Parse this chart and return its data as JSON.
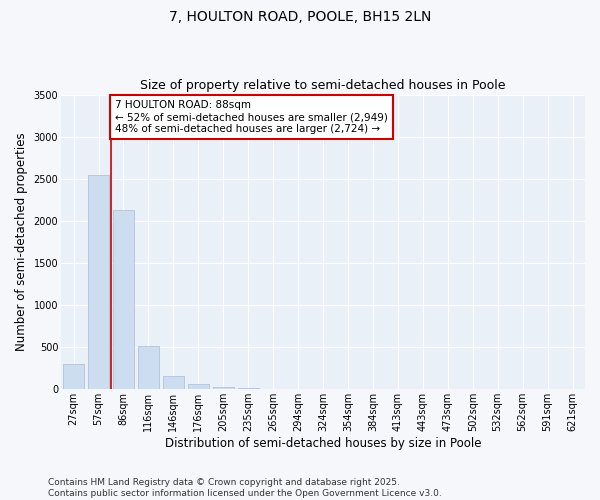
{
  "title": "7, HOULTON ROAD, POOLE, BH15 2LN",
  "subtitle": "Size of property relative to semi-detached houses in Poole",
  "xlabel": "Distribution of semi-detached houses by size in Poole",
  "ylabel": "Number of semi-detached properties",
  "categories": [
    "27sqm",
    "57sqm",
    "86sqm",
    "116sqm",
    "146sqm",
    "176sqm",
    "205sqm",
    "235sqm",
    "265sqm",
    "294sqm",
    "324sqm",
    "354sqm",
    "384sqm",
    "413sqm",
    "443sqm",
    "473sqm",
    "502sqm",
    "532sqm",
    "562sqm",
    "591sqm",
    "621sqm"
  ],
  "values": [
    300,
    2540,
    2130,
    520,
    155,
    65,
    30,
    10,
    0,
    0,
    0,
    0,
    0,
    0,
    0,
    0,
    0,
    0,
    0,
    0,
    0
  ],
  "bar_color": "#ccddf0",
  "bar_edge_color": "#aabbd8",
  "vline_color": "#cc0000",
  "annotation_text": "7 HOULTON ROAD: 88sqm\n← 52% of semi-detached houses are smaller (2,949)\n48% of semi-detached houses are larger (2,724) →",
  "annotation_box_color": "#ffffff",
  "annotation_box_edge": "#cc0000",
  "ylim": [
    0,
    3500
  ],
  "yticks": [
    0,
    500,
    1000,
    1500,
    2000,
    2500,
    3000,
    3500
  ],
  "bg_color": "#f5f7fb",
  "plot_bg_color": "#eaf0f8",
  "grid_color": "#ffffff",
  "footer": "Contains HM Land Registry data © Crown copyright and database right 2025.\nContains public sector information licensed under the Open Government Licence v3.0.",
  "title_fontsize": 10,
  "subtitle_fontsize": 9,
  "axis_label_fontsize": 8.5,
  "tick_fontsize": 7,
  "annotation_fontsize": 7.5,
  "footer_fontsize": 6.5
}
